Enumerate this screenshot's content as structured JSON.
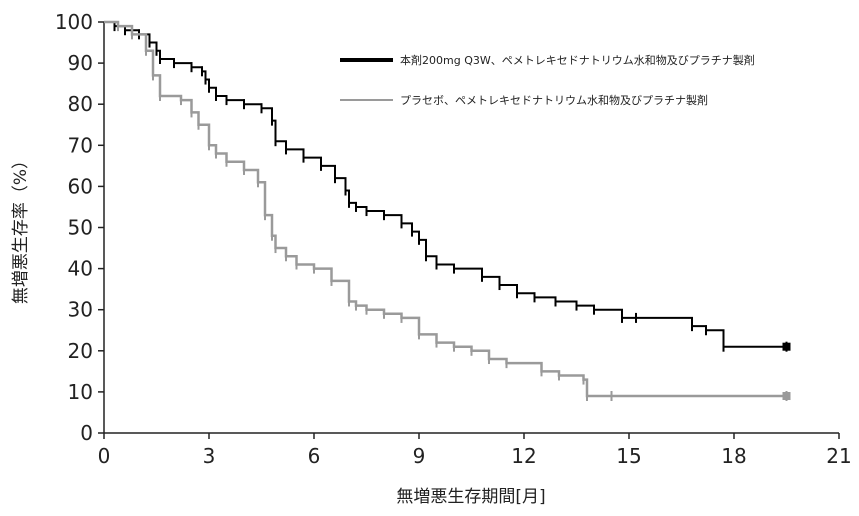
{
  "chart_data": {
    "type": "line",
    "title": "",
    "xlabel": "無増悪生存期間[月]",
    "ylabel": "無増悪生存率（%）",
    "xlim": [
      0,
      21
    ],
    "ylim": [
      0,
      100
    ],
    "xticks": [
      "0",
      "3",
      "6",
      "9",
      "12",
      "15",
      "18",
      "21"
    ],
    "yticks": [
      "0",
      "10",
      "20",
      "30",
      "40",
      "50",
      "60",
      "70",
      "80",
      "90",
      "100"
    ],
    "grid": false,
    "legend_position": "top-right",
    "series": [
      {
        "name": "本剤200mg Q3W、ペメトレキセドナトリウム水和物及びプラチナ製剤",
        "color": "#000000",
        "x": [
          0,
          0.3,
          0.6,
          1.0,
          1.3,
          1.5,
          1.6,
          2.0,
          2.5,
          2.8,
          2.9,
          3.0,
          3.2,
          3.5,
          4.0,
          4.5,
          4.8,
          4.9,
          5.2,
          5.7,
          6.2,
          6.6,
          6.9,
          7.0,
          7.2,
          7.5,
          8.0,
          8.5,
          8.8,
          9.0,
          9.2,
          9.5,
          10.0,
          10.8,
          11.3,
          11.8,
          12.3,
          12.9,
          13.5,
          14.0,
          14.8,
          15.2,
          16.8,
          17.2,
          17.7,
          19.5
        ],
        "y": [
          100,
          99,
          98,
          97,
          95,
          93,
          91,
          90,
          89,
          88,
          86,
          84,
          82,
          81,
          80,
          79,
          76,
          71,
          69,
          67,
          65,
          62,
          59,
          56,
          55,
          54,
          53,
          51,
          49,
          47,
          43,
          41,
          40,
          38,
          36,
          34,
          33,
          32,
          31,
          30,
          28,
          28,
          26,
          25,
          21,
          21
        ]
      },
      {
        "name": "プラセボ、ペメトレキセドナトリウム水和物及びプラチナ製剤",
        "color": "#9a9a9a",
        "x": [
          0,
          0.4,
          0.8,
          1.2,
          1.4,
          1.6,
          2.2,
          2.5,
          2.7,
          3.0,
          3.2,
          3.5,
          4.0,
          4.4,
          4.6,
          4.8,
          4.9,
          5.2,
          5.5,
          6.0,
          6.5,
          7.0,
          7.2,
          7.5,
          8.0,
          8.5,
          9.0,
          9.5,
          10.0,
          10.5,
          11.0,
          11.5,
          12.5,
          13.0,
          13.7,
          13.8,
          14.5,
          19.5
        ],
        "y": [
          100,
          99,
          97,
          93,
          87,
          82,
          81,
          78,
          75,
          70,
          68,
          66,
          64,
          61,
          53,
          48,
          45,
          43,
          41,
          40,
          37,
          32,
          31,
          30,
          29,
          28,
          24,
          22,
          21,
          20,
          18,
          17,
          15,
          14,
          13,
          9,
          9,
          9
        ]
      }
    ]
  }
}
